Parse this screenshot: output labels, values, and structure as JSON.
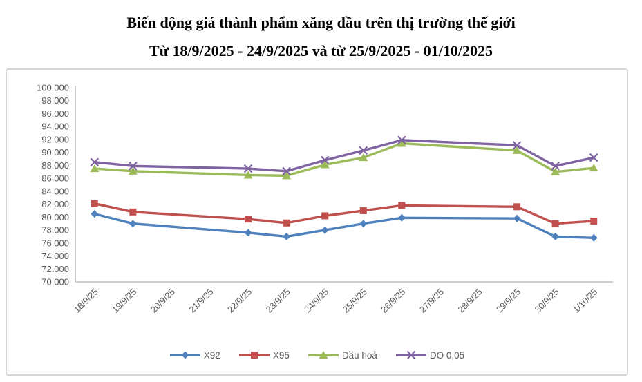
{
  "title": {
    "line1": "Biến động giá thành phẩm xăng dầu trên thị trường thế giới",
    "line2": "Từ 18/9/2025 - 24/9/2025 và từ 25/9/2025 - 01/10/2025"
  },
  "chart_data": {
    "type": "line",
    "title": "Biến động giá thành phẩm xăng dầu trên thị trường thế giới Từ 18/9/2025 - 24/9/2025 và từ 25/9/2025 - 01/10/2025",
    "categories": [
      "18/9/25",
      "19/9/25",
      "20/9/25",
      "21/9/25",
      "22/9/25",
      "23/9/25",
      "24/9/25",
      "25/9/25",
      "26/9/25",
      "27/9/25",
      "28/9/25",
      "29/9/25",
      "30/9/25",
      "1/10/25"
    ],
    "series": [
      {
        "name": "X92",
        "color": "#4F81BD",
        "marker": "diamond",
        "values": [
          80500,
          79000,
          null,
          null,
          77600,
          77000,
          78000,
          79000,
          79900,
          null,
          null,
          79800,
          77000,
          76800
        ]
      },
      {
        "name": "X95",
        "color": "#C0504D",
        "marker": "square",
        "values": [
          82100,
          80800,
          null,
          null,
          79700,
          79100,
          80200,
          81000,
          81800,
          null,
          null,
          81600,
          79000,
          79400
        ]
      },
      {
        "name": "Dầu hoả",
        "color": "#9BBB59",
        "marker": "triangle",
        "values": [
          87500,
          87100,
          null,
          null,
          86500,
          86400,
          88100,
          89200,
          91400,
          null,
          null,
          90300,
          87000,
          87600
        ]
      },
      {
        "name": "DO 0,05",
        "color": "#8064A2",
        "marker": "x",
        "values": [
          88500,
          87900,
          null,
          null,
          87500,
          87100,
          88800,
          90300,
          91900,
          null,
          null,
          91100,
          87900,
          89200
        ]
      }
    ],
    "ylim": [
      70000,
      100000
    ],
    "ytick_step": 2000,
    "ytick_labels": [
      "70.000",
      "72.000",
      "74.000",
      "76.000",
      "78.000",
      "80.000",
      "82.000",
      "84.000",
      "86.000",
      "88.000",
      "90.000",
      "92.000",
      "94.000",
      "96.000",
      "98.000",
      "100.000"
    ],
    "grid": false,
    "legend_position": "bottom",
    "axis_color": "#BFBFBF",
    "label_color": "#595959"
  }
}
